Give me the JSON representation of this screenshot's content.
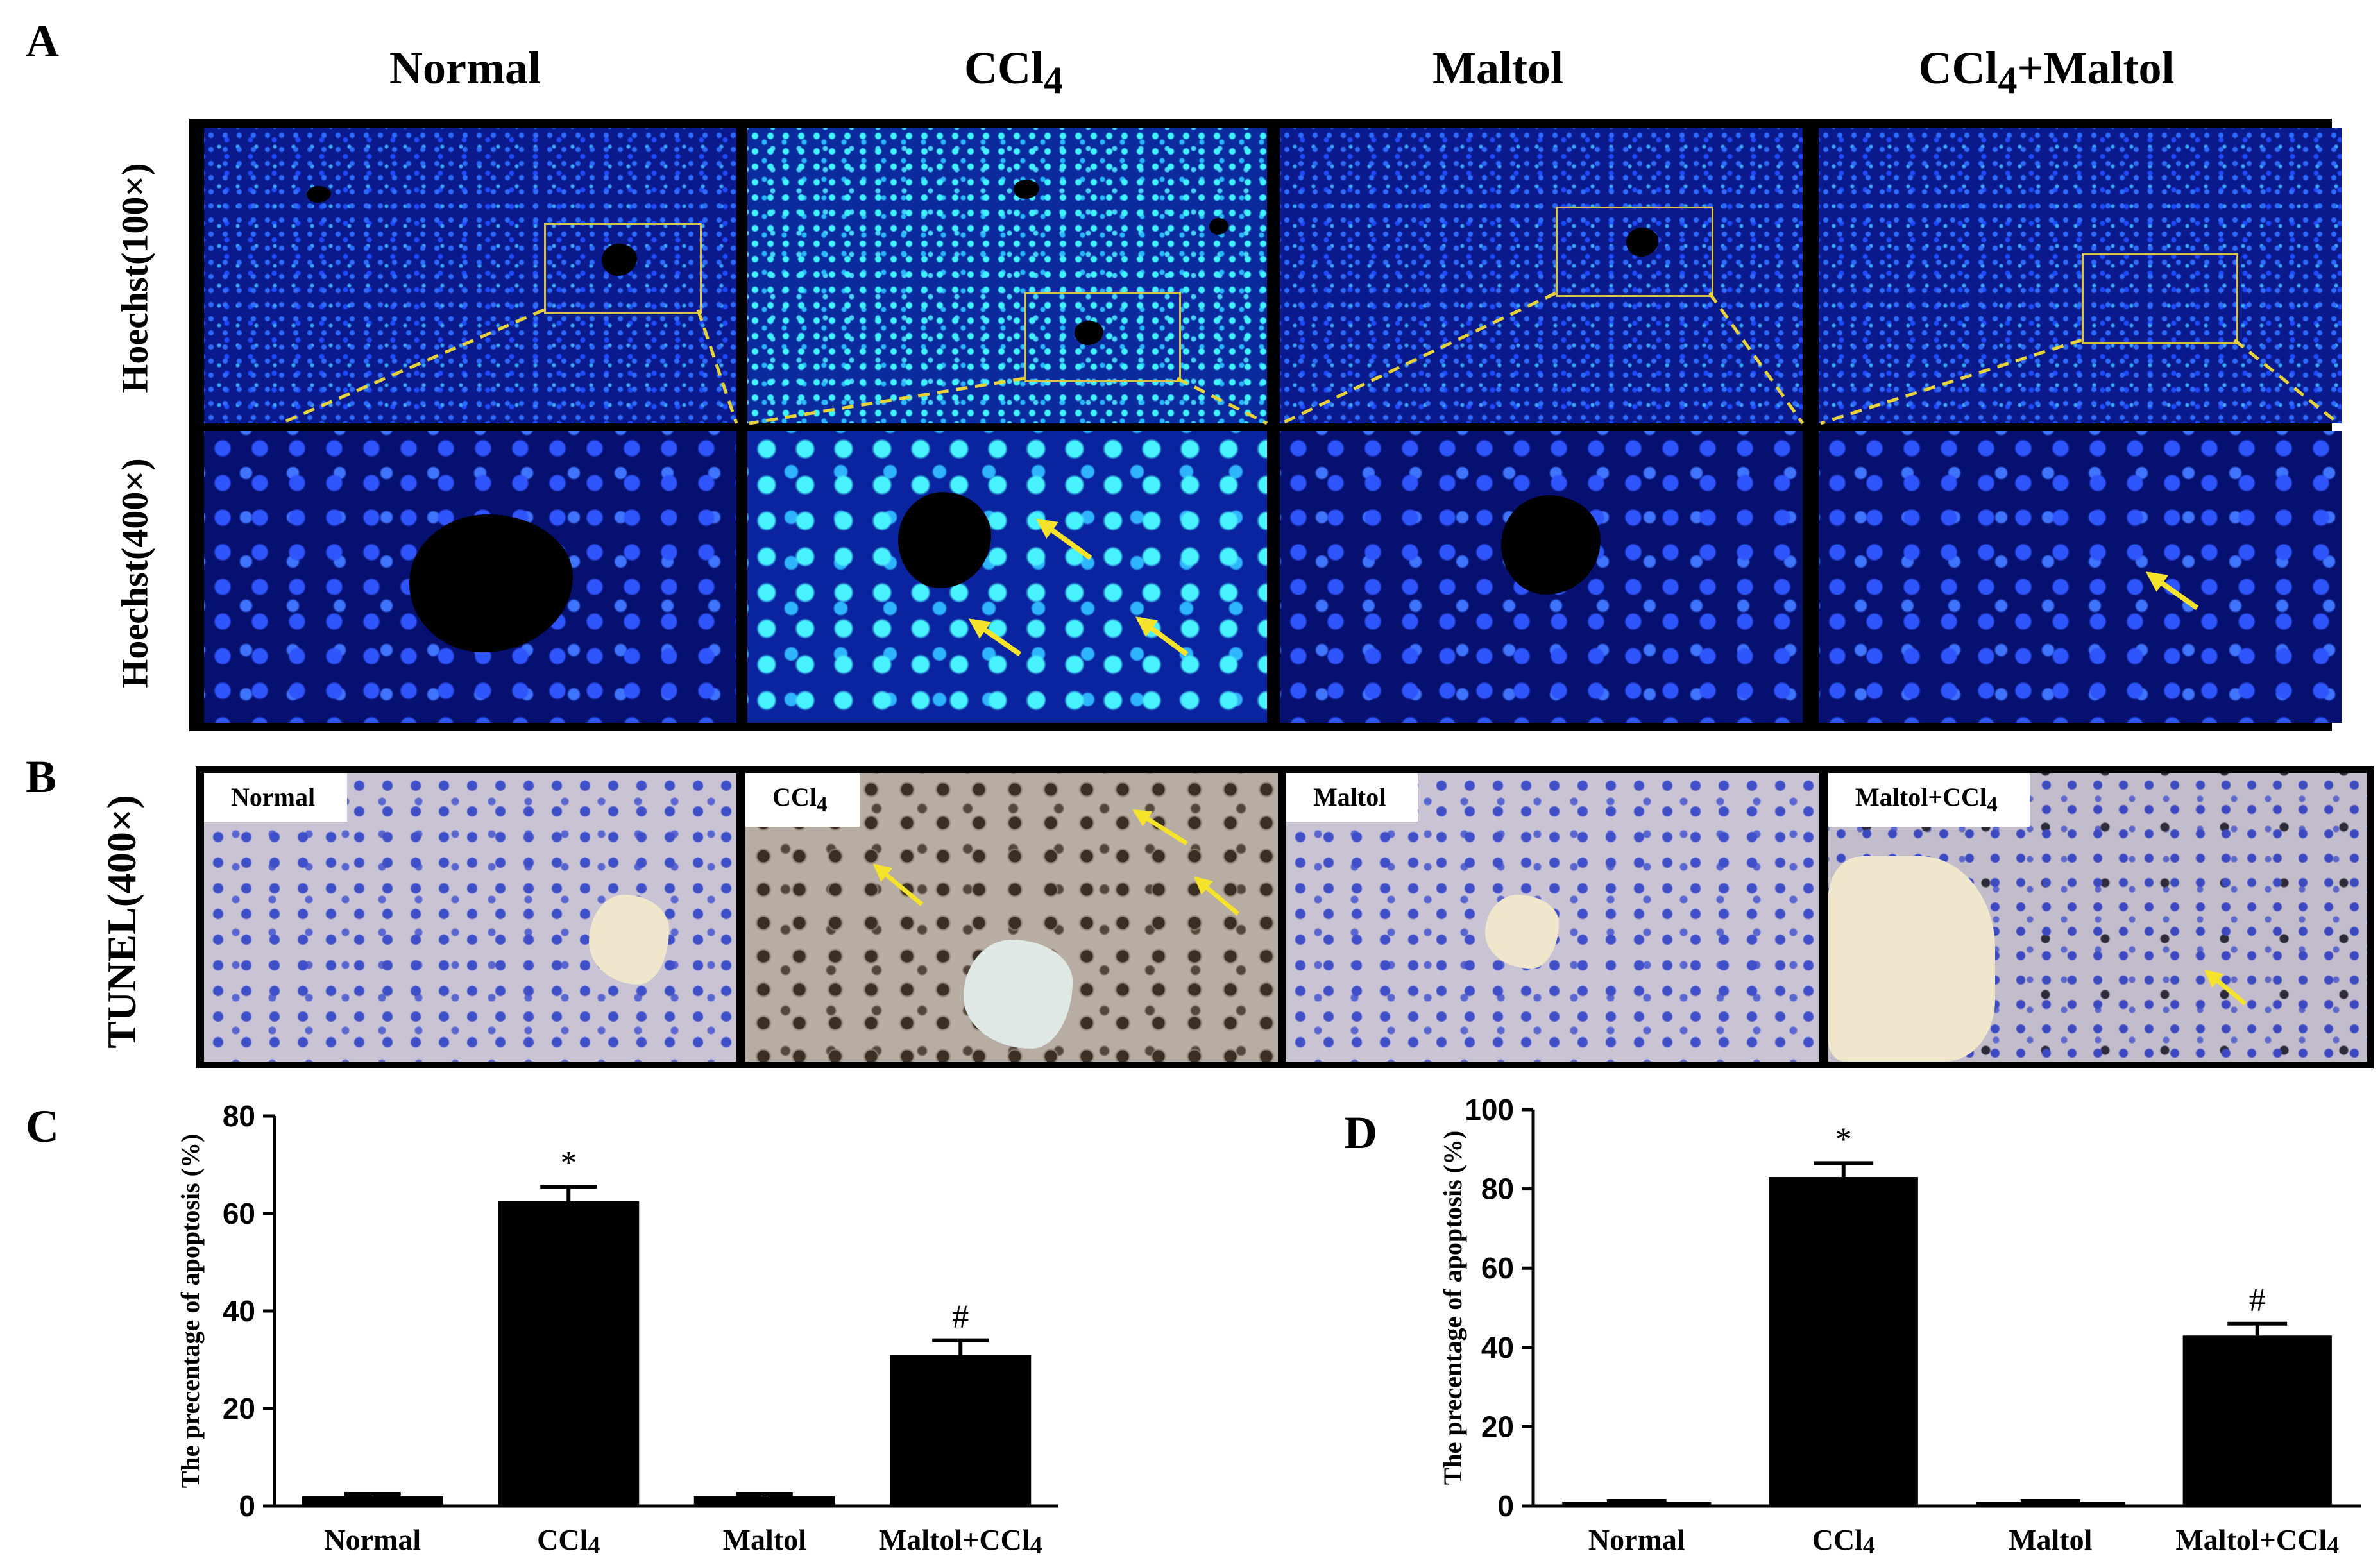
{
  "panels": {
    "A": {
      "letter": "A",
      "columns": [
        "Normal",
        "CCl",
        "Maltol",
        "CCl"
      ],
      "column_html": [
        "Normal",
        "CCl<sub>4</sub>",
        "Maltol",
        "CCl<sub>4</sub>+Maltol"
      ],
      "row_labels": [
        "Hoechst(100×)",
        "Hoechst(400×)"
      ]
    },
    "B": {
      "letter": "B",
      "row_label": "TUNEL(400×)",
      "tags": [
        "Normal",
        "CCl",
        "Maltol",
        "Maltol+CCl"
      ],
      "tag_html": [
        "Normal",
        "CCl<sub>4</sub>",
        "Maltol",
        "Maltol+CCl<sub>4</sub>"
      ]
    },
    "C": {
      "letter": "C"
    },
    "D": {
      "letter": "D"
    }
  },
  "colors": {
    "arrow": "#f5e22a",
    "dash": "#e6d23a",
    "bar": "#000000"
  },
  "chart_data": [
    {
      "type": "bar",
      "panel": "C",
      "categories": [
        "Normal",
        "CCl4",
        "Maltol",
        "Maltol+CCl4"
      ],
      "values": [
        2,
        62.5,
        2,
        31
      ],
      "errors": [
        0.5,
        3,
        0.5,
        3
      ],
      "annotations": [
        "",
        "*",
        "",
        "#"
      ],
      "ylabel": "The precentage of apoptosis (%)",
      "ylim": [
        0,
        80
      ],
      "yticks": [
        0,
        20,
        40,
        60,
        80
      ]
    },
    {
      "type": "bar",
      "panel": "D",
      "categories": [
        "Normal",
        "CCl4",
        "Maltol",
        "Maltol+CCl4"
      ],
      "values": [
        1,
        83,
        1,
        43
      ],
      "errors": [
        0.3,
        3.5,
        0.3,
        3
      ],
      "annotations": [
        "",
        "*",
        "",
        "#"
      ],
      "ylabel": "The precentage of apoptosis (%)",
      "ylim": [
        0,
        100
      ],
      "yticks": [
        0,
        20,
        40,
        60,
        80,
        100
      ]
    }
  ]
}
